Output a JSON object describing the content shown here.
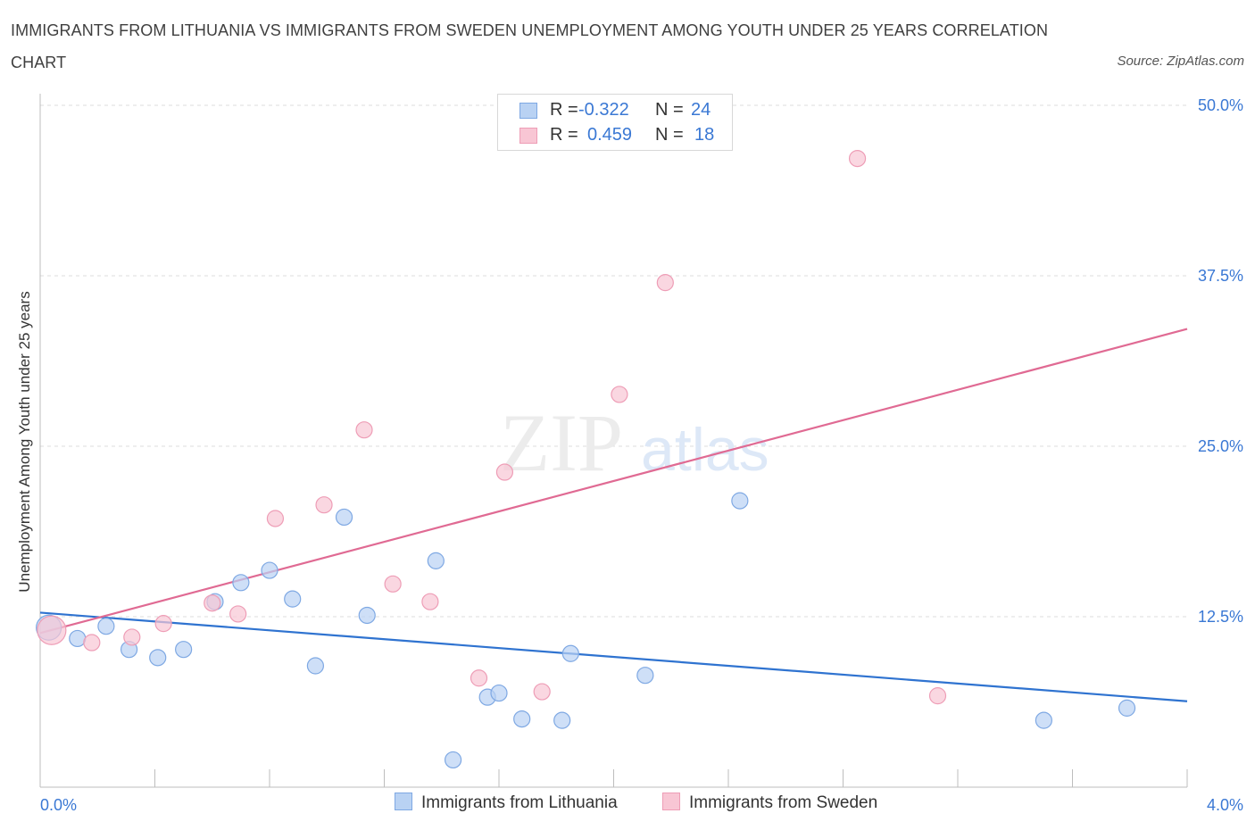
{
  "header": {
    "title": "IMMIGRANTS FROM LITHUANIA VS IMMIGRANTS FROM SWEDEN UNEMPLOYMENT AMONG YOUTH UNDER 25 YEARS CORRELATION CHART",
    "source": "Source: ZipAtlas.com"
  },
  "legend": {
    "series1": {
      "r_label": "R =",
      "r_value": "-0.322",
      "n_label": "N =",
      "n_value": "24"
    },
    "series2": {
      "r_label": "R =",
      "r_value": "0.459",
      "n_label": "N =",
      "n_value": "18"
    }
  },
  "watermark": {
    "zip": "ZIP",
    "atlas": "atlas"
  },
  "colors": {
    "lithuania_fill": "#b9d2f3",
    "lithuania_stroke": "#7ea8e3",
    "lithuania_line": "#2f73d0",
    "sweden_fill": "#f8c6d4",
    "sweden_stroke": "#ee9db6",
    "sweden_line": "#e06a93",
    "tick_label": "#3a78d4"
  },
  "chart_data": {
    "type": "scatter",
    "title": "IMMIGRANTS FROM LITHUANIA VS IMMIGRANTS FROM SWEDEN UNEMPLOYMENT AMONG YOUTH UNDER 25 YEARS CORRELATION CHART",
    "xlabel": "",
    "ylabel": "Unemployment Among Youth under 25 years",
    "xlim": [
      0,
      4
    ],
    "ylim": [
      0,
      50
    ],
    "x_tick_labels": [
      "0.0%",
      "4.0%"
    ],
    "y_ticks": [
      {
        "value": 12.5,
        "label": "12.5%"
      },
      {
        "value": 25,
        "label": "25.0%"
      },
      {
        "value": 37.5,
        "label": "37.5%"
      },
      {
        "value": 50,
        "label": "50.0%"
      }
    ],
    "series": [
      {
        "name": "Immigrants from Lithuania",
        "points": [
          [
            0.03,
            11.7,
            14
          ],
          [
            0.13,
            10.9,
            9
          ],
          [
            0.23,
            11.8,
            9
          ],
          [
            0.31,
            10.1,
            9
          ],
          [
            0.41,
            9.5,
            9
          ],
          [
            0.5,
            10.1,
            9
          ],
          [
            0.61,
            13.6,
            9
          ],
          [
            0.7,
            15.0,
            9
          ],
          [
            0.8,
            15.9,
            9
          ],
          [
            0.88,
            13.8,
            9
          ],
          [
            0.96,
            8.9,
            9
          ],
          [
            1.06,
            19.8,
            9
          ],
          [
            1.14,
            12.6,
            9
          ],
          [
            1.38,
            16.6,
            9
          ],
          [
            1.44,
            2.0,
            9
          ],
          [
            1.56,
            6.6,
            9
          ],
          [
            1.6,
            6.9,
            9
          ],
          [
            1.68,
            5.0,
            9
          ],
          [
            1.82,
            4.9,
            9
          ],
          [
            1.85,
            9.8,
            9
          ],
          [
            2.11,
            8.2,
            9
          ],
          [
            2.44,
            21.0,
            9
          ],
          [
            3.5,
            4.9,
            9
          ],
          [
            3.79,
            5.8,
            9
          ]
        ],
        "trend": {
          "x": [
            0,
            4
          ],
          "y": [
            12.8,
            6.3
          ]
        }
      },
      {
        "name": "Immigrants from Sweden",
        "points": [
          [
            0.04,
            11.5,
            16
          ],
          [
            0.18,
            10.6,
            9
          ],
          [
            0.32,
            11.0,
            9
          ],
          [
            0.43,
            12.0,
            9
          ],
          [
            0.6,
            13.5,
            9
          ],
          [
            0.69,
            12.7,
            9
          ],
          [
            0.82,
            19.7,
            9
          ],
          [
            0.99,
            20.7,
            9
          ],
          [
            1.13,
            26.2,
            9
          ],
          [
            1.23,
            14.9,
            9
          ],
          [
            1.36,
            13.6,
            9
          ],
          [
            1.53,
            8.0,
            9
          ],
          [
            1.62,
            23.1,
            9
          ],
          [
            1.75,
            7.0,
            9
          ],
          [
            2.02,
            28.8,
            9
          ],
          [
            2.18,
            37.0,
            9
          ],
          [
            2.85,
            46.1,
            9
          ],
          [
            3.13,
            6.7,
            9
          ]
        ],
        "trend": {
          "x": [
            0,
            4
          ],
          "y": [
            11.3,
            33.6
          ]
        }
      }
    ],
    "legend_position": "bottom-center",
    "grid": true
  }
}
